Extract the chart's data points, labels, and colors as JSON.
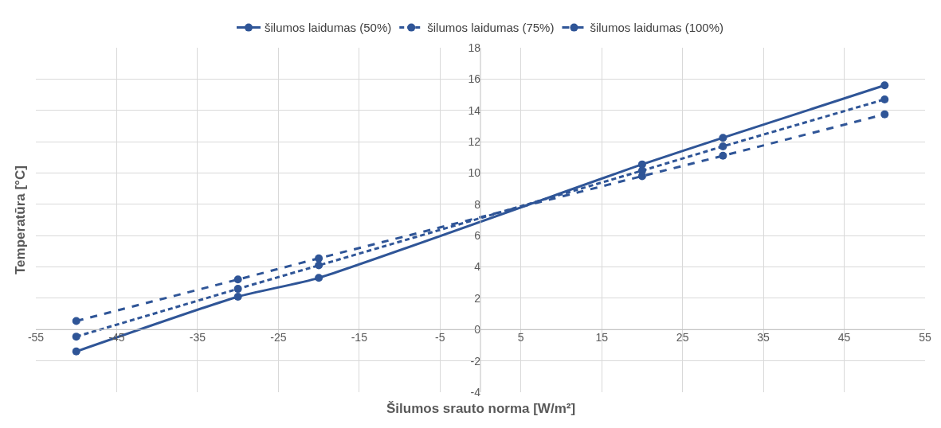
{
  "chart_data": {
    "type": "line",
    "xlabel": "Šilumos srauto norma [W/m²]",
    "ylabel": "Temperatūra [°C]",
    "x": [
      -50,
      -30,
      -20,
      20,
      30,
      50
    ],
    "series": [
      {
        "name": "šilumos laidumas (50%)",
        "color": "#2f5597",
        "values": [
          -1.4,
          2.1,
          3.3,
          10.55,
          12.25,
          15.6
        ],
        "line_style": "solid"
      },
      {
        "name": "šilumos laidumas (75%)",
        "color": "#2f5597",
        "values": [
          -0.45,
          2.6,
          4.1,
          10.15,
          11.7,
          14.7
        ],
        "line_style": "dotted"
      },
      {
        "name": "šilumos laidumas (100%)",
        "color": "#2f5597",
        "values": [
          0.55,
          3.2,
          4.55,
          9.8,
          11.1,
          13.75
        ],
        "line_style": "dashed"
      }
    ],
    "xlim": [
      -55,
      55
    ],
    "xticks": [
      -55,
      -45,
      -35,
      -25,
      -15,
      -5,
      5,
      15,
      25,
      35,
      45,
      55
    ],
    "ylim": [
      -4,
      18
    ],
    "yticks": [
      -4,
      -2,
      0,
      2,
      4,
      6,
      8,
      10,
      12,
      14,
      16,
      18
    ],
    "grid": true,
    "legend": "top",
    "marker": "circle"
  }
}
